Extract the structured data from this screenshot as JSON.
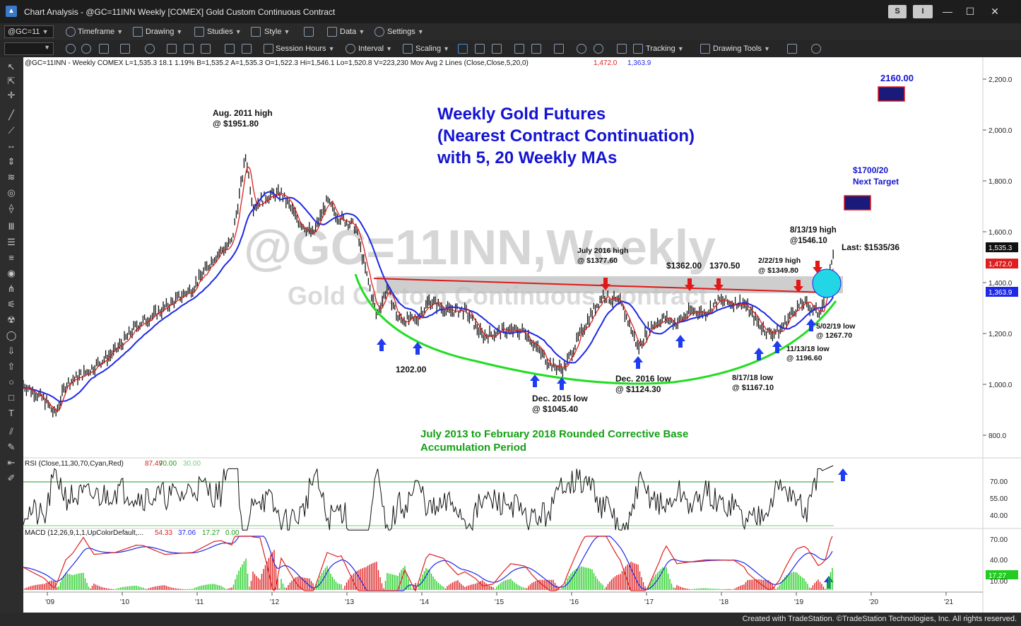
{
  "window": {
    "title": "Chart Analysis - @GC=11INN Weekly [COMEX] Gold Custom Continuous Contract",
    "s_button": "S",
    "i_button": "I",
    "minimize": "—",
    "maximize": "☐",
    "close": "✕"
  },
  "toolbar1": {
    "symbol": "@GC=11",
    "timeframe": "Timeframe",
    "drawing": "Drawing",
    "studies": "Studies",
    "style": "Style",
    "data": "Data",
    "settings": "Settings"
  },
  "toolbar2": {
    "session_hours": "Session Hours",
    "interval": "Interval",
    "scaling": "Scaling",
    "tracking": "Tracking",
    "drawing_tools": "Drawing Tools"
  },
  "chart": {
    "header_symbol": "@GC=11INN - Weekly  COMEX  L=1,535.3  18.1  1.19%  B=1,535.2  A=1,535.3  O=1,522.3  Hi=1,546.1  Lo=1,520.8  V=223,230  Mov Avg 2 Lines (Close,Close,5,20,0)",
    "ma1_value": "1,472.0",
    "ma2_value": "1,363.9",
    "watermark_line1": "@GC=11INN,Weekly",
    "watermark_line2": "Gold Custom Continuous Contract",
    "title_line1": "Weekly Gold Futures",
    "title_line2": "(Nearest Contract Continuation)",
    "title_line3": "with 5, 20 Weekly MAs",
    "base_line1": "July 2013 to February 2018 Rounded Corrective Base",
    "base_line2": "Accumulation Period",
    "last_label": "Last: $1535/36",
    "price_badge_last": "1,535.3",
    "price_badge_ma1": "1,472.0",
    "price_badge_ma2": "1,363.9",
    "target_2160": "2160.00",
    "target_1700_line1": "$1700/20",
    "target_1700_line2": "Next Target"
  },
  "annotations": {
    "aug2011_line1": "Aug. 2011 high",
    "aug2011_line2": "@ $1951.80",
    "low1202": "1202.00",
    "dec2015_line1": "Dec. 2015 low",
    "dec2015_line2": "@ $1045.40",
    "july2016_line1": "July 2016 high",
    "july2016_line2": "@ $1377.60",
    "dec2016_line1": "Dec. 2016 low",
    "dec2016_line2": "@ $1124.30",
    "h1362": "$1362.00",
    "h1370": "1370.50",
    "feb2019_line1": "2/22/19 high",
    "feb2019_line2": "@ $1349.80",
    "aug2019_line1": "8/13/19 high",
    "aug2019_line2": "@1546.10",
    "aug2018_line1": "8/17/18 low",
    "aug2018_line2": "@ $1167.10",
    "nov2018_line1": "11/13/18 low",
    "nov2018_line2": "@ 1196.60",
    "may2019_line1": "5/02/19 low",
    "may2019_line2": "@ 1267.70"
  },
  "price_axis": [
    "2,200.0",
    "2,000.0",
    "1,800.0",
    "1,600.0",
    "1,400.0",
    "1,200.0",
    "1,000.0",
    "800.0"
  ],
  "rsi": {
    "label": "RSI (Close,11,30,70,Cyan,Red)",
    "v1": "87.49",
    "v2": "70.00",
    "v3": "30.00",
    "axis": [
      "70.00",
      "55.00",
      "40.00"
    ]
  },
  "macd": {
    "label": "MACD (12,26,9,1,1,UpColorDefault,...",
    "v1": "54.33",
    "v2": "37.06",
    "v3": "17.27",
    "v4": "0.00",
    "axis": [
      "70.00",
      "40.00",
      "10.00"
    ],
    "badge": "17.27"
  },
  "time_axis": [
    "'09",
    "'10",
    "'11",
    "'12",
    "'13",
    "'14",
    "'15",
    "'16",
    "'17",
    "'18",
    "'19",
    "'20",
    "'21"
  ],
  "footer": {
    "credit": "Created with TradeStation. ©TradeStation Technologies, Inc. All rights reserved."
  },
  "colors": {
    "title_blue": "#1414d2",
    "base_green": "#14a014",
    "resistance_red": "#e01818",
    "arrow_blue": "#1f3cf0",
    "target_box": "#1a1a7a",
    "ma_blue": "#1e28e6",
    "ma_red": "#dd1f1f"
  }
}
